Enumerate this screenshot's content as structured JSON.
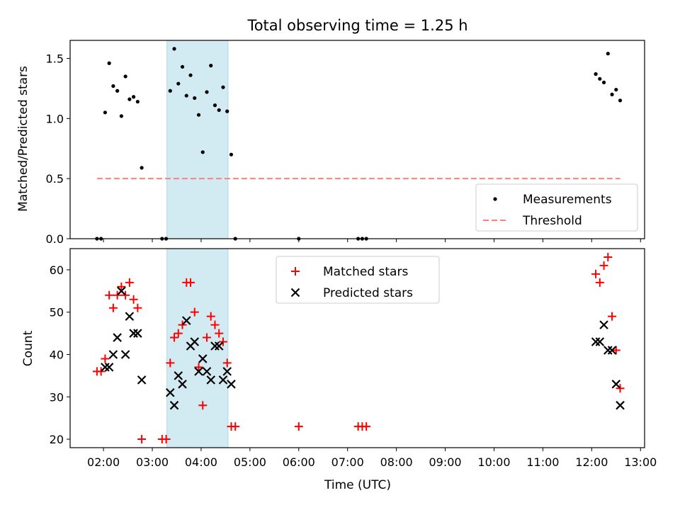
{
  "chart_data": [
    {
      "type": "scatter",
      "title": "Total observing time = 1.25 h",
      "xlabel": "",
      "ylabel": "Matched/Predicted stars",
      "xlim": [
        "01:19",
        "13:05"
      ],
      "ylim": [
        0,
        1.65
      ],
      "yticks": [
        "0.0",
        "0.5",
        "1.0",
        "1.5"
      ],
      "highlight_span": [
        "03:18",
        "04:33"
      ],
      "highlight_color": "#add8e6",
      "legend_position": "lower right",
      "series": [
        {
          "name": "Measurements",
          "marker": "dot",
          "color": "#000000",
          "points": [
            [
              "01:52",
              0.0
            ],
            [
              "01:57",
              0.0
            ],
            [
              "02:02",
              1.05
            ],
            [
              "02:07",
              1.46
            ],
            [
              "02:12",
              1.27
            ],
            [
              "02:17",
              1.23
            ],
            [
              "02:22",
              1.02
            ],
            [
              "02:27",
              1.35
            ],
            [
              "02:32",
              1.16
            ],
            [
              "02:37",
              1.18
            ],
            [
              "02:42",
              1.14
            ],
            [
              "02:47",
              0.59
            ],
            [
              "03:12",
              0.0
            ],
            [
              "03:17",
              0.0
            ],
            [
              "03:22",
              1.23
            ],
            [
              "03:27",
              1.58
            ],
            [
              "03:32",
              1.29
            ],
            [
              "03:37",
              1.43
            ],
            [
              "03:42",
              1.19
            ],
            [
              "03:47",
              1.36
            ],
            [
              "03:52",
              1.17
            ],
            [
              "03:57",
              1.03
            ],
            [
              "04:02",
              0.72
            ],
            [
              "04:07",
              1.22
            ],
            [
              "04:12",
              1.44
            ],
            [
              "04:17",
              1.11
            ],
            [
              "04:22",
              1.07
            ],
            [
              "04:27",
              1.26
            ],
            [
              "04:32",
              1.06
            ],
            [
              "04:37",
              0.7
            ],
            [
              "04:42",
              0.0
            ],
            [
              "06:00",
              0.0
            ],
            [
              "07:13",
              0.0
            ],
            [
              "07:18",
              0.0
            ],
            [
              "07:23",
              0.0
            ],
            [
              "12:05",
              1.37
            ],
            [
              "12:10",
              1.33
            ],
            [
              "12:15",
              1.3
            ],
            [
              "12:20",
              1.54
            ],
            [
              "12:25",
              1.2
            ],
            [
              "12:30",
              1.24
            ],
            [
              "12:35",
              1.15
            ]
          ]
        },
        {
          "name": "Threshold",
          "marker": "dashed-line",
          "color": "#ff7f7f",
          "points": [
            [
              "01:52",
              0.5
            ],
            [
              "12:35",
              0.5
            ]
          ]
        }
      ]
    },
    {
      "type": "scatter",
      "title": "",
      "xlabel": "Time (UTC)",
      "ylabel": "Count",
      "xlim": [
        "01:19",
        "13:05"
      ],
      "ylim": [
        18,
        65
      ],
      "yticks": [
        "20",
        "30",
        "40",
        "50",
        "60"
      ],
      "xticks": [
        "02:00",
        "03:00",
        "04:00",
        "05:00",
        "06:00",
        "07:00",
        "08:00",
        "09:00",
        "10:00",
        "11:00",
        "12:00",
        "13:00"
      ],
      "highlight_span": [
        "03:18",
        "04:33"
      ],
      "highlight_color": "#add8e6",
      "legend_position": "upper center",
      "series": [
        {
          "name": "Matched stars",
          "marker": "plus",
          "color": "#ff0000",
          "points": [
            [
              "01:52",
              36
            ],
            [
              "01:57",
              36
            ],
            [
              "02:02",
              39
            ],
            [
              "02:07",
              54
            ],
            [
              "02:12",
              51
            ],
            [
              "02:17",
              54
            ],
            [
              "02:22",
              56
            ],
            [
              "02:27",
              54
            ],
            [
              "02:32",
              57
            ],
            [
              "02:37",
              53
            ],
            [
              "02:42",
              51
            ],
            [
              "02:47",
              20
            ],
            [
              "03:12",
              20
            ],
            [
              "03:17",
              20
            ],
            [
              "03:22",
              38
            ],
            [
              "03:27",
              44
            ],
            [
              "03:32",
              45
            ],
            [
              "03:37",
              47
            ],
            [
              "03:42",
              57
            ],
            [
              "03:47",
              57
            ],
            [
              "03:52",
              50
            ],
            [
              "03:57",
              37
            ],
            [
              "04:02",
              28
            ],
            [
              "04:07",
              44
            ],
            [
              "04:12",
              49
            ],
            [
              "04:17",
              47
            ],
            [
              "04:22",
              45
            ],
            [
              "04:27",
              43
            ],
            [
              "04:32",
              38
            ],
            [
              "04:37",
              23
            ],
            [
              "04:42",
              23
            ],
            [
              "06:00",
              23
            ],
            [
              "07:13",
              23
            ],
            [
              "07:18",
              23
            ],
            [
              "07:23",
              23
            ],
            [
              "12:05",
              59
            ],
            [
              "12:10",
              57
            ],
            [
              "12:15",
              61
            ],
            [
              "12:20",
              63
            ],
            [
              "12:25",
              49
            ],
            [
              "12:30",
              41
            ],
            [
              "12:35",
              32
            ]
          ]
        },
        {
          "name": "Predicted stars",
          "marker": "x",
          "color": "#000000",
          "points": [
            [
              "02:02",
              37
            ],
            [
              "02:07",
              37
            ],
            [
              "02:12",
              40
            ],
            [
              "02:17",
              44
            ],
            [
              "02:22",
              55
            ],
            [
              "02:27",
              40
            ],
            [
              "02:32",
              49
            ],
            [
              "02:37",
              45
            ],
            [
              "02:42",
              45
            ],
            [
              "02:47",
              34
            ],
            [
              "03:22",
              31
            ],
            [
              "03:27",
              28
            ],
            [
              "03:32",
              35
            ],
            [
              "03:37",
              33
            ],
            [
              "03:42",
              48
            ],
            [
              "03:47",
              42
            ],
            [
              "03:52",
              43
            ],
            [
              "03:57",
              36
            ],
            [
              "04:02",
              39
            ],
            [
              "04:07",
              36
            ],
            [
              "04:12",
              34
            ],
            [
              "04:17",
              42
            ],
            [
              "04:22",
              42
            ],
            [
              "04:27",
              34
            ],
            [
              "04:32",
              36
            ],
            [
              "04:37",
              33
            ],
            [
              "12:05",
              43
            ],
            [
              "12:10",
              43
            ],
            [
              "12:15",
              47
            ],
            [
              "12:20",
              41
            ],
            [
              "12:25",
              41
            ],
            [
              "12:30",
              33
            ],
            [
              "12:35",
              28
            ]
          ]
        }
      ]
    }
  ]
}
